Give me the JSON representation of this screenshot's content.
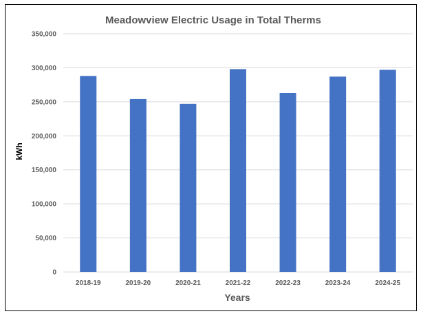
{
  "chart_data": {
    "type": "bar",
    "title": "Meadowview Electric Usage in Total Therms",
    "xlabel": "Years",
    "ylabel": "kWh",
    "categories": [
      "2018-19",
      "2019-20",
      "2020-21",
      "2021-22",
      "2022-23",
      "2023-24",
      "2024-25"
    ],
    "values": [
      288000,
      254000,
      247000,
      298000,
      263000,
      287000,
      297000
    ],
    "ylim": [
      0,
      350000
    ],
    "yticks": [
      "0",
      "50,000",
      "100,000",
      "150,000",
      "200,000",
      "250,000",
      "300,000",
      "350,000"
    ],
    "grid": true,
    "legend": "none",
    "colors": {
      "bar": "#4472C4",
      "grid": "#D9D9D9",
      "text": "#595959"
    }
  }
}
